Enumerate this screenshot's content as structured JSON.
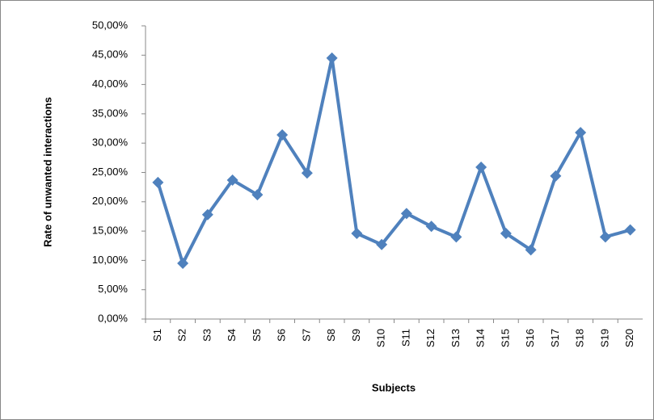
{
  "chart_data": {
    "type": "line",
    "x_label": "Subjects",
    "y_label": "Rate of unwanted interactions",
    "categories": [
      "S1",
      "S2",
      "S3",
      "S4",
      "S5",
      "S6",
      "S7",
      "S8",
      "S9",
      "S10",
      "S11",
      "S12",
      "S13",
      "S14",
      "S15",
      "S16",
      "S17",
      "S18",
      "S19",
      "S20"
    ],
    "series": [
      {
        "color": "#4f81bd",
        "values": [
          23.3,
          9.5,
          17.8,
          23.7,
          21.2,
          31.4,
          24.9,
          44.5,
          14.6,
          12.7,
          18.0,
          15.8,
          14.0,
          25.9,
          14.6,
          11.8,
          24.4,
          31.8,
          14.0,
          15.2
        ]
      }
    ],
    "ylim": [
      0,
      50
    ],
    "yticks": [
      {
        "value": 0,
        "label": "0,00%"
      },
      {
        "value": 5,
        "label": "5,00%"
      },
      {
        "value": 10,
        "label": "10,00%"
      },
      {
        "value": 15,
        "label": "15,00%"
      },
      {
        "value": 20,
        "label": "20,00%"
      },
      {
        "value": 25,
        "label": "25,00%"
      },
      {
        "value": 30,
        "label": "30,00%"
      },
      {
        "value": 35,
        "label": "35,00%"
      },
      {
        "value": 40,
        "label": "40,00%"
      },
      {
        "value": 45,
        "label": "45,00%"
      },
      {
        "value": 50,
        "label": "50,00%"
      }
    ],
    "grid": false
  }
}
